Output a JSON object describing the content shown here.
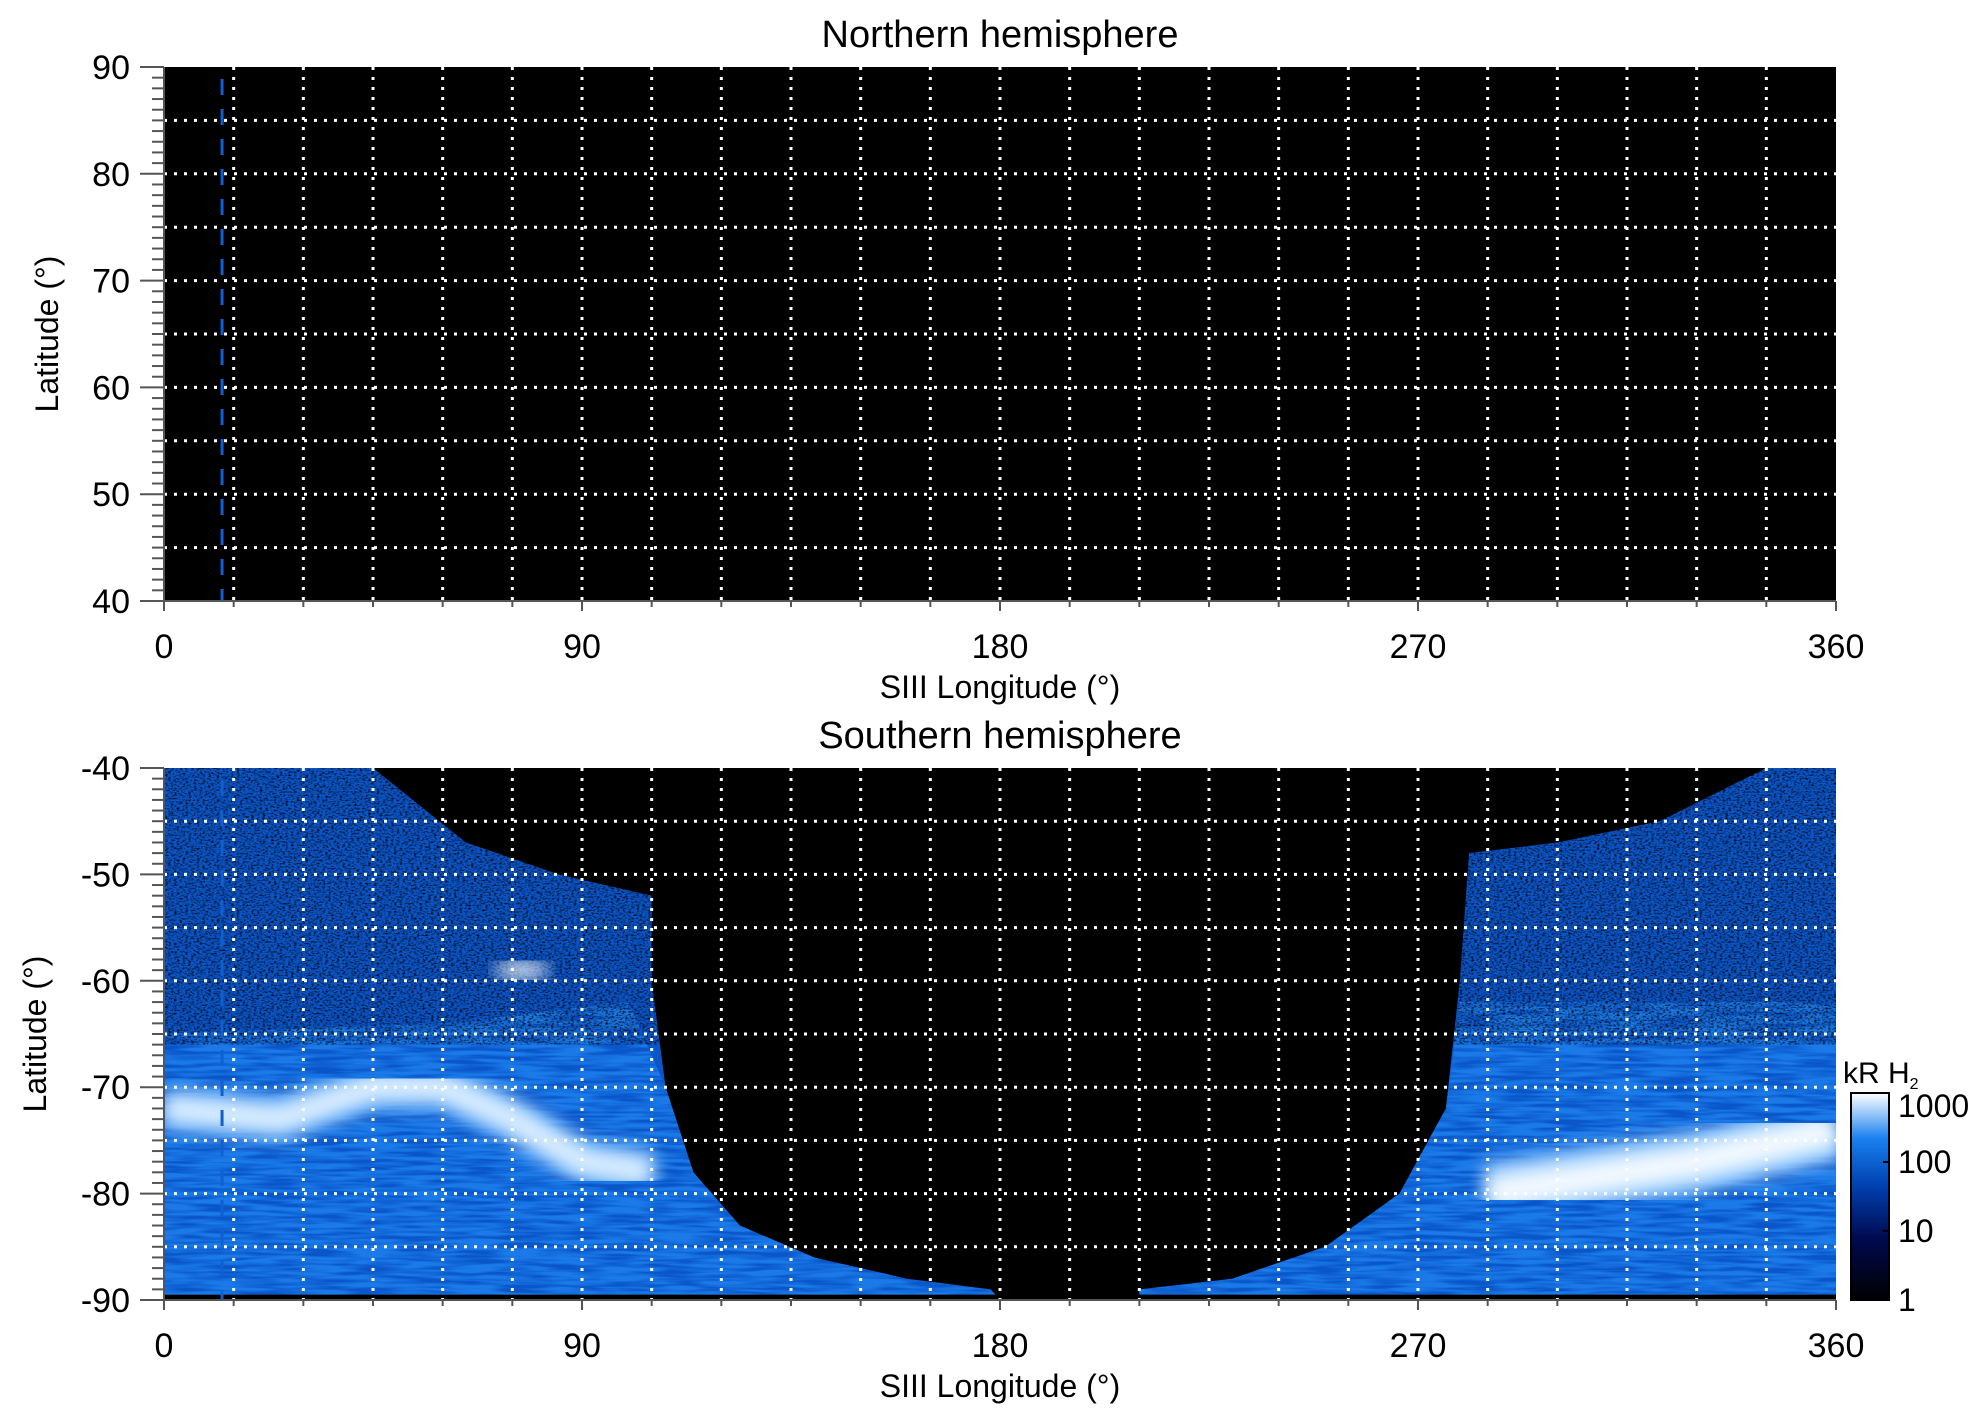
{
  "chart_data": [
    {
      "type": "heatmap",
      "title": "Northern hemisphere",
      "xlabel": "SIII Longitude (°)",
      "ylabel": "Latitude (°)",
      "xlim": [
        0,
        360
      ],
      "ylim": [
        40,
        90
      ],
      "xticks": [
        "0",
        "90",
        "180",
        "270",
        "360"
      ],
      "yticks": [
        "40",
        "50",
        "60",
        "70",
        "80",
        "90"
      ],
      "grid": {
        "on": true,
        "lon_step": 15,
        "lat_step": 5,
        "style": "dotted white"
      },
      "marker_line": {
        "longitude": 12.5,
        "style": "dashed",
        "color": "#1060d0"
      },
      "emission": "none (all black)"
    },
    {
      "type": "heatmap",
      "title": "Southern hemisphere",
      "xlabel": "SIII Longitude (°)",
      "ylabel": "Latitude (°)",
      "xlim": [
        0,
        360
      ],
      "ylim": [
        -90,
        -40
      ],
      "xticks": [
        "0",
        "90",
        "180",
        "270",
        "360"
      ],
      "yticks": [
        "-90",
        "-80",
        "-70",
        "-60",
        "-50",
        "-40"
      ],
      "grid": {
        "on": true,
        "lon_step": 15,
        "lat_step": 5,
        "style": "dotted white"
      },
      "marker_line": {
        "longitude": 12.5,
        "style": "dashed",
        "color": "#1060d0"
      },
      "emission_regions": [
        {
          "name": "left",
          "lon_range": [
            0,
            180
          ],
          "main_oval_lat": [
            [
              0,
              -72
            ],
            [
              25,
              -73
            ],
            [
              45,
              -70
            ],
            [
              60,
              -70
            ],
            [
              75,
              -73
            ],
            [
              90,
              -77
            ],
            [
              105,
              -78
            ]
          ]
        },
        {
          "name": "right",
          "lon_range": [
            210,
            360
          ],
          "main_oval_lat": [
            [
              285,
              -80
            ],
            [
              300,
              -79
            ],
            [
              330,
              -77
            ],
            [
              360,
              -74
            ]
          ]
        }
      ],
      "colorbar": {
        "label": "kR H",
        "label_subscript": "2",
        "scale": "log",
        "range": [
          1,
          1000
        ],
        "ticks": [
          "1",
          "10",
          "100",
          "1000"
        ],
        "colors": [
          "#000000",
          "#000a50",
          "#0040b0",
          "#1a80f0",
          "#ffffff"
        ]
      }
    }
  ]
}
